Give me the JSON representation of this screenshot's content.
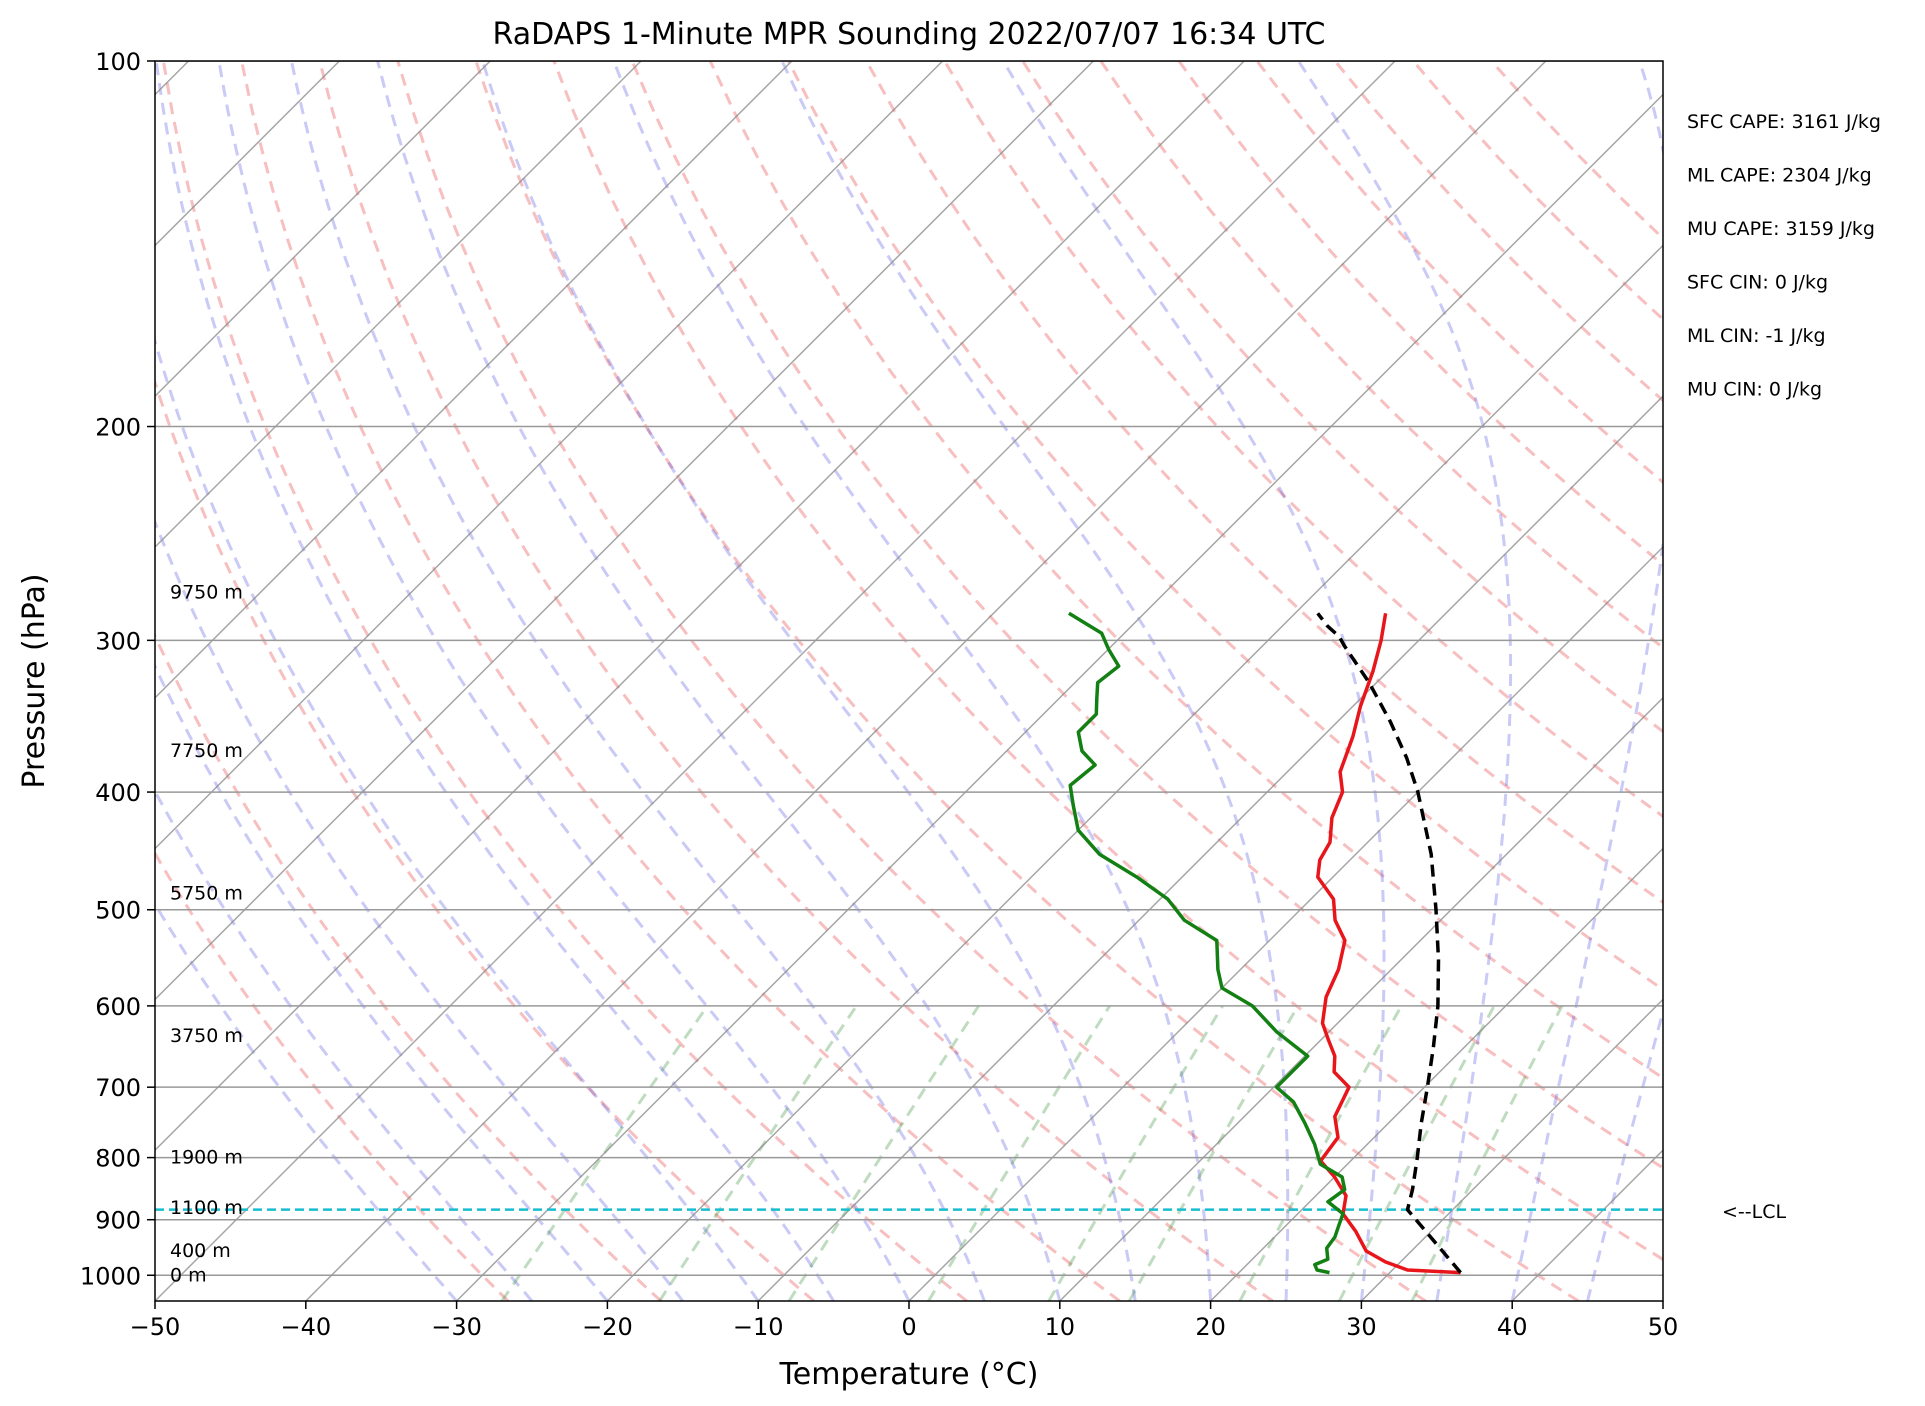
{
  "chart_data": {
    "type": "line",
    "title": "RaDAPS 1-Minute MPR Sounding 2022/07/07 16:34 UTC",
    "xlabel": "Temperature (°C)",
    "ylabel": "Pressure (hPa)",
    "xlim": [
      -50,
      50
    ],
    "ylim": [
      1050,
      100
    ],
    "y_scale": "log",
    "skew": true,
    "grid": true,
    "x_ticks": [
      "−50",
      "−40",
      "−30",
      "−20",
      "−10",
      "0",
      "10",
      "20",
      "30",
      "40",
      "50"
    ],
    "y_ticks": [
      "100",
      "200",
      "300",
      "400",
      "500",
      "600",
      "700",
      "800",
      "900",
      "1000"
    ],
    "series": [
      {
        "kind": "temperature",
        "color": "#e8161b",
        "points": [
          [
            34.7,
            995
          ],
          [
            31,
            990
          ],
          [
            29,
            975
          ],
          [
            27,
            955
          ],
          [
            25,
            920
          ],
          [
            23,
            890
          ],
          [
            22,
            860
          ],
          [
            20,
            830
          ],
          [
            18,
            805
          ],
          [
            17.6,
            770
          ],
          [
            16,
            740
          ],
          [
            15,
            700
          ],
          [
            13,
            680
          ],
          [
            12,
            660
          ],
          [
            10.5,
            640
          ],
          [
            9,
            620
          ],
          [
            7.5,
            590
          ],
          [
            6.5,
            560
          ],
          [
            5,
            530
          ],
          [
            3,
            510
          ],
          [
            1.5,
            490
          ],
          [
            -1,
            470
          ],
          [
            -2,
            455
          ],
          [
            -2.5,
            440
          ],
          [
            -4,
            420
          ],
          [
            -5,
            400
          ],
          [
            -6.5,
            385
          ],
          [
            -8,
            360
          ],
          [
            -9.5,
            340
          ],
          [
            -11,
            318
          ],
          [
            -12.5,
            300
          ],
          [
            -14,
            285
          ]
        ]
      },
      {
        "kind": "dewpoint",
        "color": "#138013",
        "points": [
          [
            26,
            995
          ],
          [
            25,
            990
          ],
          [
            24.5,
            980
          ],
          [
            25,
            970
          ],
          [
            24.2,
            950
          ],
          [
            24,
            930
          ],
          [
            23.5,
            910
          ],
          [
            23,
            890
          ],
          [
            21.2,
            870
          ],
          [
            21.5,
            850
          ],
          [
            20.5,
            830
          ],
          [
            18.2,
            810
          ],
          [
            16.5,
            780
          ],
          [
            14.5,
            750
          ],
          [
            12.3,
            720
          ],
          [
            10.2,
            700
          ],
          [
            10.2,
            660
          ],
          [
            6.5,
            630
          ],
          [
            3.2,
            600
          ],
          [
            0,
            580
          ],
          [
            -1.5,
            560
          ],
          [
            -3.5,
            530
          ],
          [
            -7,
            510
          ],
          [
            -9.5,
            490
          ],
          [
            -13,
            470
          ],
          [
            -17,
            450
          ],
          [
            -20,
            430
          ],
          [
            -22,
            410
          ],
          [
            -23.5,
            395
          ],
          [
            -23.2,
            380
          ],
          [
            -25,
            370
          ],
          [
            -26.5,
            357
          ],
          [
            -26.5,
            345
          ],
          [
            -27.5,
            335
          ],
          [
            -28.5,
            325
          ],
          [
            -28.2,
            315
          ],
          [
            -30,
            305
          ],
          [
            -31.5,
            296
          ],
          [
            -35,
            285
          ]
        ]
      },
      {
        "kind": "parcel",
        "color": "#000000",
        "dashed": true,
        "points": [
          [
            34.7,
            995
          ],
          [
            27,
            883
          ],
          [
            26,
            850
          ],
          [
            24.2,
            800
          ],
          [
            22.2,
            750
          ],
          [
            20.2,
            700
          ],
          [
            18,
            650
          ],
          [
            15.5,
            600
          ],
          [
            12.5,
            550
          ],
          [
            9,
            500
          ],
          [
            5,
            450
          ],
          [
            0,
            400
          ],
          [
            -3,
            375
          ],
          [
            -6.5,
            350
          ],
          [
            -10.5,
            325
          ],
          [
            -14.6,
            303
          ],
          [
            -15.5,
            298
          ],
          [
            -17,
            292
          ],
          [
            -18.5,
            285
          ]
        ]
      }
    ],
    "lcl": {
      "pressure": 883,
      "label": "<--LCL",
      "color": "#17becf"
    },
    "height_labels": [
      {
        "p": 1000,
        "text": "0 m"
      },
      {
        "p": 955,
        "text": "400 m"
      },
      {
        "p": 880,
        "text": "1100 m"
      },
      {
        "p": 800,
        "text": "1900 m"
      },
      {
        "p": 635,
        "text": "3750 m"
      },
      {
        "p": 485,
        "text": "5750 m"
      },
      {
        "p": 370,
        "text": "7750 m"
      },
      {
        "p": 274,
        "text": "9750 m"
      }
    ],
    "indices": [
      {
        "label": "SFC CAPE: 3161 J/kg"
      },
      {
        "label": "ML CAPE: 2304 J/kg"
      },
      {
        "label": "MU CAPE: 3159 J/kg"
      },
      {
        "label": "SFC CIN: 0 J/kg"
      },
      {
        "label": "ML CIN: -1 J/kg"
      },
      {
        "label": "MU CIN: 0 J/kg"
      }
    ]
  }
}
